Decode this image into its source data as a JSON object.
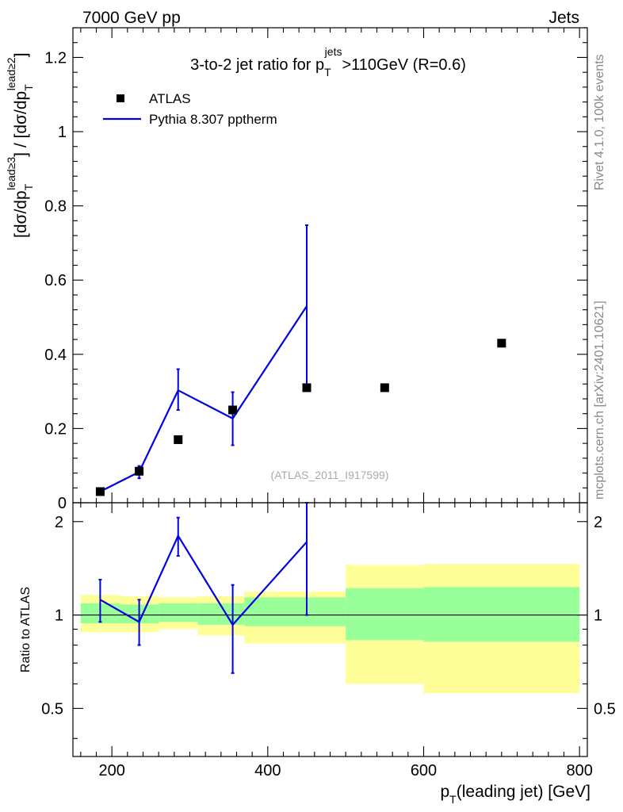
{
  "header": {
    "left": "7000 GeV pp",
    "right": "Jets"
  },
  "side": {
    "rivet": "Rivet 4.1.0,  100k events",
    "mcplots": "mcplots.cern.ch [arXiv:2401.10621]"
  },
  "chart_data": [
    {
      "type": "scatter",
      "panel": "main",
      "title": {
        "prefix": "3-to-2 jet ratio for p",
        "sub": "T",
        "sup": "jets",
        "suffix": ">110GeV (R=0.6)"
      },
      "ylabel": "[dσ/dp_T^{lead≥3}] / [dσ/dp_T^{lead≥2}]",
      "ylabel_parts": {
        "a": "[dσ/dp",
        "a_sub": "T",
        "a_sup": "lead≥3",
        "b": "] / [dσ/dp",
        "b_sub": "T",
        "b_sup": "lead≥2",
        "c": "]"
      },
      "watermark": "(ATLAS_2011_I917599)",
      "xlim": [
        150,
        810
      ],
      "ylim": [
        0,
        1.28
      ],
      "yticks": [
        0,
        0.2,
        0.4,
        0.6,
        0.8,
        1,
        1.2
      ],
      "ytick_labels": [
        "0",
        "0.2",
        "0.4",
        "0.6",
        "0.8",
        "1",
        "1.2"
      ],
      "legend": {
        "placement": "top-left",
        "entries": [
          "ATLAS",
          "Pythia 8.307 pptherm"
        ]
      },
      "series": [
        {
          "name": "ATLAS",
          "style": "markers",
          "color": "#000000",
          "x": [
            185,
            235,
            285,
            355,
            450,
            550,
            700
          ],
          "y": [
            0.03,
            0.085,
            0.17,
            0.25,
            0.31,
            0.31,
            0.43
          ]
        },
        {
          "name": "Pythia 8.307 pptherm",
          "style": "line",
          "color": "#0000e0",
          "x": [
            185,
            235,
            285,
            355,
            450
          ],
          "y": [
            0.03,
            0.083,
            0.303,
            0.227,
            0.53
          ],
          "yerr_low": [
            0.03,
            0.066,
            0.25,
            0.155,
            0.31
          ],
          "yerr_high": [
            0.03,
            0.099,
            0.36,
            0.298,
            0.748
          ]
        }
      ]
    },
    {
      "type": "line",
      "panel": "ratio",
      "ylabel": "Ratio to ATLAS",
      "xlabel": "p_T(leading jet) [GeV]",
      "xlabel_parts": {
        "a": "p",
        "sub": "T",
        "b": "(leading jet) [GeV]"
      },
      "xlim": [
        150,
        810
      ],
      "ylim": [
        0.35,
        2.3
      ],
      "xticks": [
        200,
        400,
        600,
        800
      ],
      "xtick_labels": [
        "200",
        "400",
        "600",
        "800"
      ],
      "yticks": [
        0.5,
        1,
        2
      ],
      "ytick_labels": [
        "0.5",
        "1",
        "2"
      ],
      "bins": [
        [
          160,
          210
        ],
        [
          210,
          260
        ],
        [
          260,
          310
        ],
        [
          310,
          370
        ],
        [
          370,
          500
        ],
        [
          500,
          600
        ],
        [
          600,
          800
        ]
      ],
      "band_outer": [
        [
          0.88,
          1.16
        ],
        [
          0.88,
          1.15
        ],
        [
          0.9,
          1.14
        ],
        [
          0.86,
          1.15
        ],
        [
          0.81,
          1.19
        ],
        [
          0.6,
          1.45
        ],
        [
          0.56,
          1.46
        ]
      ],
      "band_inner": [
        [
          0.94,
          1.09
        ],
        [
          0.94,
          1.08
        ],
        [
          0.95,
          1.09
        ],
        [
          0.93,
          1.09
        ],
        [
          0.92,
          1.14
        ],
        [
          0.83,
          1.22
        ],
        [
          0.82,
          1.23
        ]
      ],
      "band_colors": {
        "outer": "#ffff99",
        "inner": "#99ff99"
      },
      "series": [
        {
          "name": "Pythia 8.307 pptherm",
          "color": "#0000e0",
          "x": [
            185,
            235,
            285,
            355,
            450
          ],
          "y": [
            1.12,
            0.95,
            1.8,
            0.93,
            1.72
          ],
          "yerr_low": [
            0.95,
            0.8,
            1.55,
            0.65,
            1.0
          ],
          "yerr_high": [
            1.3,
            1.12,
            2.06,
            1.25,
            2.3
          ]
        }
      ]
    }
  ]
}
